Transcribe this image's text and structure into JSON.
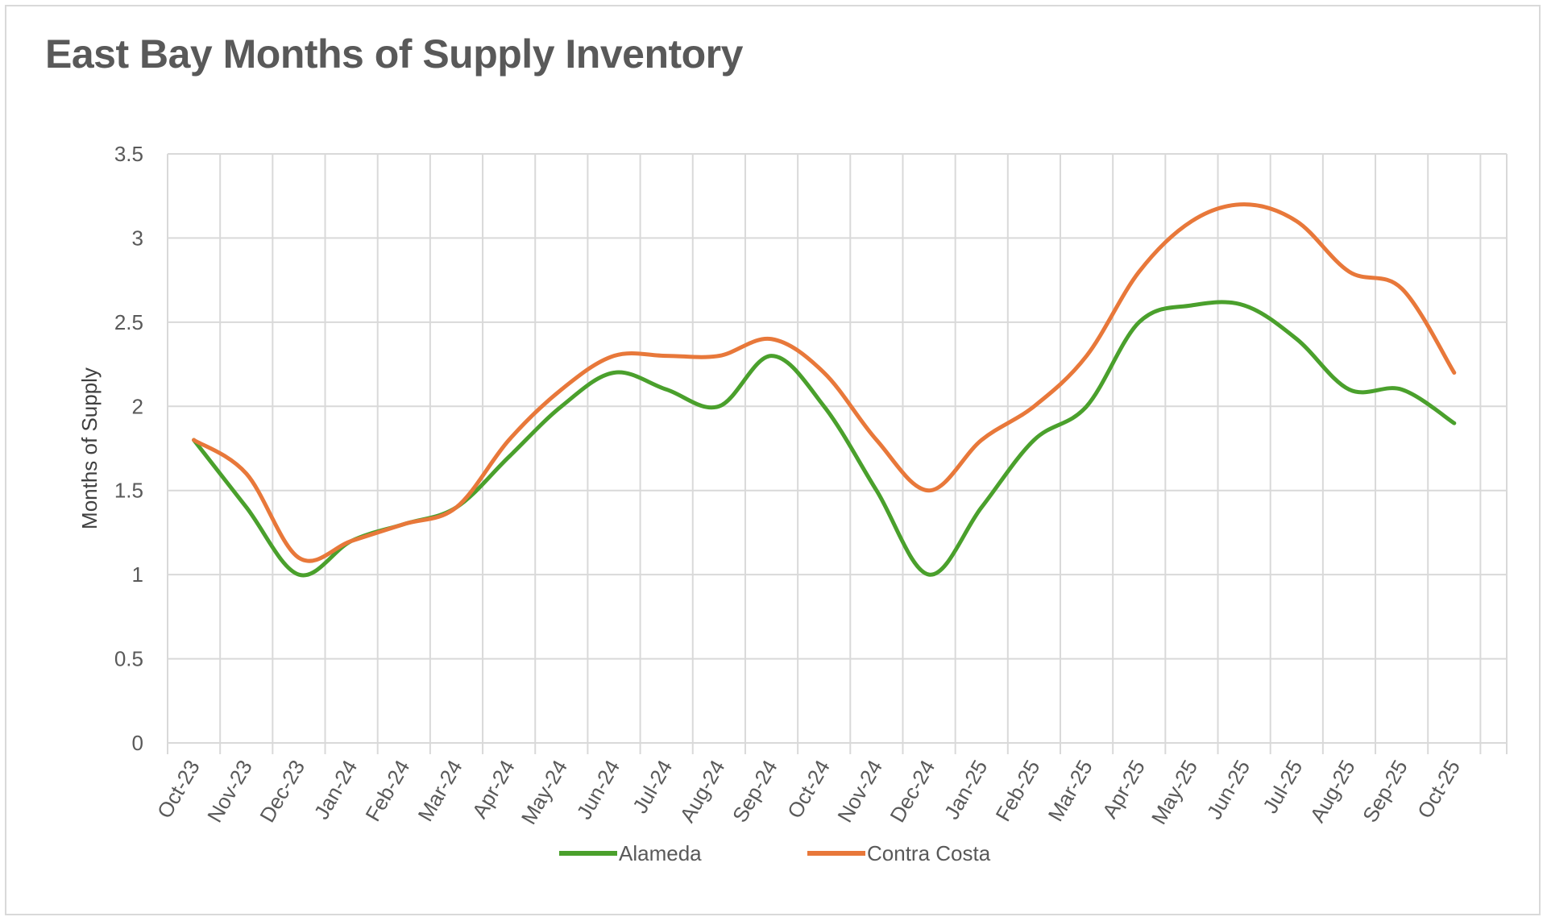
{
  "chart_data": {
    "type": "line",
    "title": "East Bay Months of Supply Inventory",
    "xlabel": "",
    "ylabel": "Months of Supply",
    "ylim": [
      0,
      3.5
    ],
    "yticks": [
      "0",
      "0.5",
      "1",
      "1.5",
      "2",
      "2.5",
      "3",
      "3.5"
    ],
    "grid": true,
    "legend_position": "bottom",
    "categories": [
      "Oct-23",
      "Nov-23",
      "Dec-23",
      "Jan-24",
      "Feb-24",
      "Mar-24",
      "Apr-24",
      "May-24",
      "Jun-24",
      "Jul-24",
      "Aug-24",
      "Sep-24",
      "Oct-24",
      "Nov-24",
      "Dec-24",
      "Jan-25",
      "Feb-25",
      "Mar-25",
      "Apr-25",
      "May-25",
      "Jun-25",
      "Jul-25",
      "Aug-25",
      "Sep-25",
      "Oct-25"
    ],
    "series": [
      {
        "name": "Alameda",
        "color": "#4aa02c",
        "values": [
          1.8,
          1.4,
          1.0,
          1.2,
          1.3,
          1.4,
          1.7,
          2.0,
          2.2,
          2.1,
          2.0,
          2.3,
          2.0,
          1.5,
          1.0,
          1.4,
          1.8,
          2.0,
          2.5,
          2.6,
          2.6,
          2.4,
          2.1,
          2.1,
          1.9
        ]
      },
      {
        "name": "Contra Costa",
        "color": "#e8783a",
        "values": [
          1.8,
          1.6,
          1.1,
          1.2,
          1.3,
          1.4,
          1.8,
          2.1,
          2.3,
          2.3,
          2.3,
          2.4,
          2.2,
          1.8,
          1.5,
          1.8,
          2.0,
          2.3,
          2.8,
          3.1,
          3.2,
          3.1,
          2.8,
          2.7,
          2.2
        ]
      }
    ]
  }
}
